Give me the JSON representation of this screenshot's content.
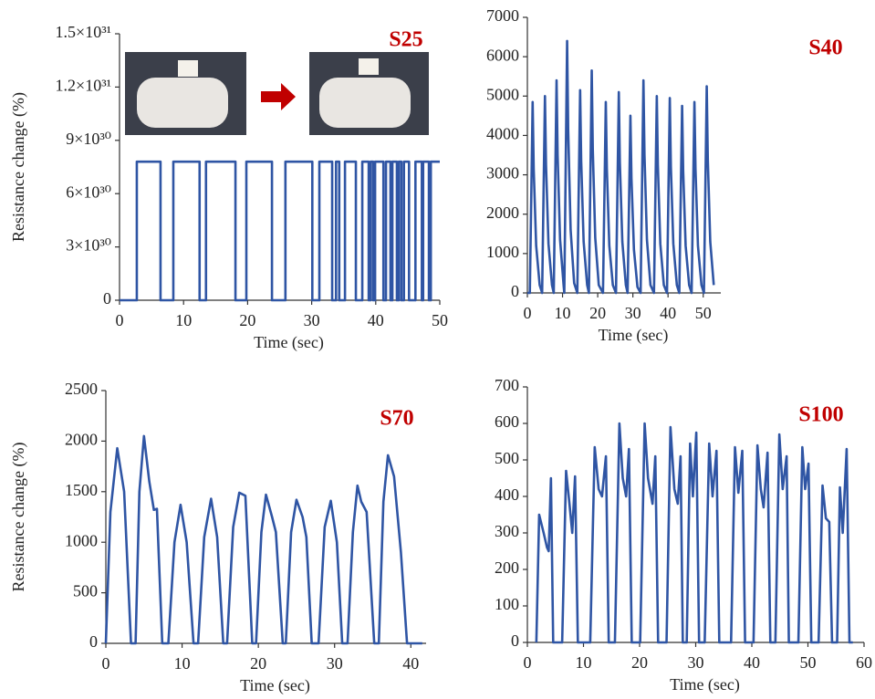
{
  "chart_data": [
    {
      "type": "line",
      "annotation": "S25",
      "xlabel": "Time (sec)",
      "ylabel": "Resistance change (%)",
      "xlim": [
        0,
        50
      ],
      "xticks": [
        0,
        10,
        20,
        30,
        40,
        50
      ],
      "ylim": [
        0,
        1.5e+31
      ],
      "yticks": [
        0,
        {
          "value": 3e+30,
          "label": "3×10³⁰"
        },
        {
          "value": 6e+30,
          "label": "6×10³⁰"
        },
        {
          "value": 9e+30,
          "label": "9×10³⁰"
        },
        {
          "value": 1.2e+31,
          "label": "1.2×10³¹"
        },
        {
          "value": 1.5e+31,
          "label": "1.5×10³¹"
        }
      ],
      "x": [
        0,
        2.7,
        2.7,
        6.4,
        6.4,
        8.4,
        8.4,
        12.5,
        12.5,
        13.5,
        13.5,
        18.1,
        18.1,
        19.8,
        19.8,
        23.8,
        23.8,
        25.9,
        25.9,
        30.1,
        30.1,
        31.2,
        31.2,
        33.2,
        33.2,
        33.8,
        33.8,
        34.3,
        34.3,
        35.2,
        35.2,
        36.9,
        36.9,
        37.9,
        37.9,
        38.9,
        38.9,
        39.2,
        39.2,
        39.6,
        39.6,
        39.9,
        39.9,
        41.2,
        41.2,
        41.6,
        41.6,
        42.3,
        42.3,
        42.6,
        42.6,
        43.3,
        43.3,
        43.6,
        43.6,
        44,
        44,
        44.4,
        44.4,
        45.2,
        45.2,
        46.2,
        46.2,
        47.2,
        47.2,
        47.4,
        47.4,
        48.3,
        48.3,
        48.6,
        48.6,
        50
      ],
      "series": [
        {
          "color": "#2f55a4",
          "values": [
            0,
            0,
            7.8e+30,
            7.8e+30,
            0,
            0,
            7.8e+30,
            7.8e+30,
            0,
            0,
            7.8e+30,
            7.8e+30,
            0,
            0,
            7.8e+30,
            7.8e+30,
            0,
            0,
            7.8e+30,
            7.8e+30,
            0,
            0,
            7.8e+30,
            7.8e+30,
            0,
            0,
            7.8e+30,
            7.8e+30,
            0,
            0,
            7.8e+30,
            7.8e+30,
            0,
            0,
            7.8e+30,
            7.8e+30,
            0,
            0,
            7.8e+30,
            7.8e+30,
            0,
            0,
            7.8e+30,
            7.8e+30,
            0,
            0,
            7.8e+30,
            7.8e+30,
            0,
            0,
            7.8e+30,
            7.8e+30,
            0,
            0,
            7.8e+30,
            7.8e+30,
            0,
            0,
            7.8e+30,
            7.8e+30,
            0,
            0,
            7.8e+30,
            7.8e+30,
            0,
            0,
            7.8e+30,
            7.8e+30,
            0,
            0,
            7.8e+30,
            7.8e+30
          ]
        }
      ]
    },
    {
      "type": "line",
      "annotation": "S40",
      "xlabel": "Time (sec)",
      "xlim": [
        0,
        55
      ],
      "xticks": [
        0,
        10,
        20,
        30,
        40,
        50
      ],
      "ylim": [
        0,
        7000
      ],
      "yticks": [
        0,
        1000,
        2000,
        3000,
        4000,
        5000,
        6000,
        7000
      ],
      "x": [
        0,
        0.7,
        1.1,
        1.5,
        1.8,
        2.5,
        3.5,
        4.2,
        4.6,
        5,
        5.3,
        6,
        7,
        7.5,
        7.9,
        8.3,
        8.6,
        9.3,
        10.3,
        10.5,
        10.9,
        11.3,
        11.6,
        12.3,
        13.3,
        14.2,
        14.6,
        15,
        15.3,
        16,
        17,
        17.5,
        17.9,
        18.3,
        18.6,
        19.3,
        20.3,
        21.5,
        21.9,
        22.3,
        22.6,
        23.3,
        24.3,
        25.2,
        25.6,
        26,
        26.3,
        27,
        28,
        28.5,
        28.9,
        29.3,
        29.6,
        30.3,
        31.3,
        32.2,
        32.6,
        33,
        33.3,
        34,
        35,
        36,
        36.4,
        36.8,
        37.1,
        37.8,
        38.8,
        39.7,
        40.1,
        40.5,
        40.8,
        41.5,
        42.5,
        43.2,
        43.6,
        44,
        44.3,
        45,
        46,
        46.7,
        47.1,
        47.5,
        47.8,
        48.5,
        49.5,
        50.2,
        50.6,
        51,
        51.3,
        52,
        53
      ],
      "series": [
        {
          "color": "#2f55a4",
          "values": [
            0,
            0,
            2400,
            4850,
            3150,
            1200,
            200,
            0,
            2500,
            5000,
            3250,
            1250,
            200,
            0,
            2700,
            5400,
            3500,
            1350,
            200,
            0,
            3200,
            6400,
            4150,
            1600,
            250,
            0,
            2600,
            5150,
            3350,
            1300,
            200,
            0,
            2800,
            5650,
            3650,
            1400,
            200,
            0,
            2400,
            4850,
            3150,
            1200,
            200,
            0,
            2550,
            5100,
            3300,
            1300,
            200,
            0,
            2250,
            4500,
            2900,
            1100,
            150,
            0,
            2700,
            5400,
            3500,
            1350,
            200,
            0,
            2500,
            5000,
            3250,
            1250,
            200,
            0,
            2500,
            4950,
            3200,
            1250,
            200,
            0,
            2400,
            4750,
            3100,
            1200,
            200,
            0,
            2400,
            4850,
            3150,
            1200,
            200,
            0,
            2600,
            5250,
            3400,
            1300,
            200
          ]
        }
      ]
    },
    {
      "type": "line",
      "annotation": "S70",
      "xlabel": "Time (sec)",
      "ylabel": "Resistance change (%)",
      "xlim": [
        0,
        42
      ],
      "xticks": [
        0,
        10,
        20,
        30,
        40
      ],
      "ylim": [
        0,
        2500
      ],
      "yticks": [
        0,
        500,
        1000,
        1500,
        2000,
        2500
      ],
      "x": [
        0,
        0.6,
        1.5,
        2.4,
        3.3,
        3.9,
        4.4,
        5,
        5.7,
        6.3,
        6.7,
        7.4,
        8.2,
        9,
        9.8,
        10.6,
        11.5,
        12.1,
        12.9,
        13.8,
        14.6,
        15.4,
        15.9,
        16.7,
        17.5,
        18.3,
        19.2,
        19.7,
        20.4,
        21,
        21.8,
        22.3,
        23.2,
        23.6,
        24.3,
        25,
        25.8,
        26.3,
        27,
        27.9,
        28.7,
        29.5,
        30.3,
        31,
        31.7,
        32.4,
        33,
        33.5,
        34.2,
        35.2,
        35.8,
        36.4,
        37,
        37.8,
        38.7,
        39.5,
        41.5
      ],
      "series": [
        {
          "color": "#2f55a4",
          "values": [
            0,
            1300,
            1930,
            1500,
            0,
            0,
            1500,
            2050,
            1600,
            1320,
            1330,
            0,
            0,
            1000,
            1370,
            1000,
            0,
            0,
            1050,
            1430,
            1050,
            0,
            0,
            1150,
            1490,
            1460,
            0,
            0,
            1100,
            1470,
            1250,
            1100,
            0,
            0,
            1100,
            1420,
            1250,
            1050,
            0,
            0,
            1150,
            1410,
            1000,
            0,
            0,
            1100,
            1560,
            1400,
            1300,
            0,
            0,
            1400,
            1860,
            1650,
            900,
            0,
            0
          ]
        }
      ]
    },
    {
      "type": "line",
      "annotation": "S100",
      "xlabel": "Time (sec)",
      "xlim": [
        0,
        60
      ],
      "xticks": [
        0,
        10,
        20,
        30,
        40,
        50,
        60
      ],
      "ylim": [
        0,
        700
      ],
      "yticks": [
        0,
        100,
        200,
        300,
        400,
        500,
        600,
        700
      ],
      "x": [
        1.6,
        2.1,
        2.9,
        3.5,
        3.8,
        4.2,
        4.6,
        6.2,
        6.9,
        7.5,
        8,
        8.5,
        9,
        11.2,
        12,
        12.7,
        13.3,
        14,
        14.5,
        15.6,
        16.4,
        17,
        17.6,
        18.1,
        18.6,
        20.1,
        20.9,
        21.5,
        22.3,
        22.8,
        23.3,
        24.8,
        25.5,
        26.2,
        26.8,
        27.3,
        27.7,
        28.4,
        29,
        29.5,
        30.1,
        30.6,
        31.6,
        32.4,
        33,
        33.7,
        34.2,
        36.3,
        37,
        37.6,
        38.3,
        38.8,
        40.3,
        41,
        41.6,
        42.1,
        42.8,
        43.3,
        44.2,
        44.9,
        45.5,
        46.2,
        46.6,
        48.3,
        49,
        49.5,
        50.1,
        50.6,
        51.9,
        52.6,
        53.2,
        53.8,
        54.3,
        55.2,
        55.7,
        56.2,
        56.9,
        57.4,
        58
      ],
      "series": [
        {
          "color": "#2f55a4",
          "values": [
            0,
            350,
            300,
            260,
            250,
            450,
            0,
            0,
            470,
            380,
            300,
            455,
            0,
            0,
            535,
            420,
            400,
            510,
            0,
            0,
            600,
            450,
            400,
            530,
            0,
            0,
            600,
            450,
            380,
            510,
            0,
            0,
            590,
            420,
            380,
            510,
            0,
            0,
            545,
            400,
            575,
            0,
            0,
            545,
            400,
            525,
            0,
            0,
            535,
            410,
            525,
            0,
            0,
            540,
            420,
            370,
            520,
            0,
            0,
            570,
            420,
            510,
            0,
            0,
            535,
            420,
            490,
            0,
            0,
            430,
            340,
            330,
            0,
            0,
            425,
            300,
            530,
            0,
            0
          ]
        }
      ]
    }
  ]
}
